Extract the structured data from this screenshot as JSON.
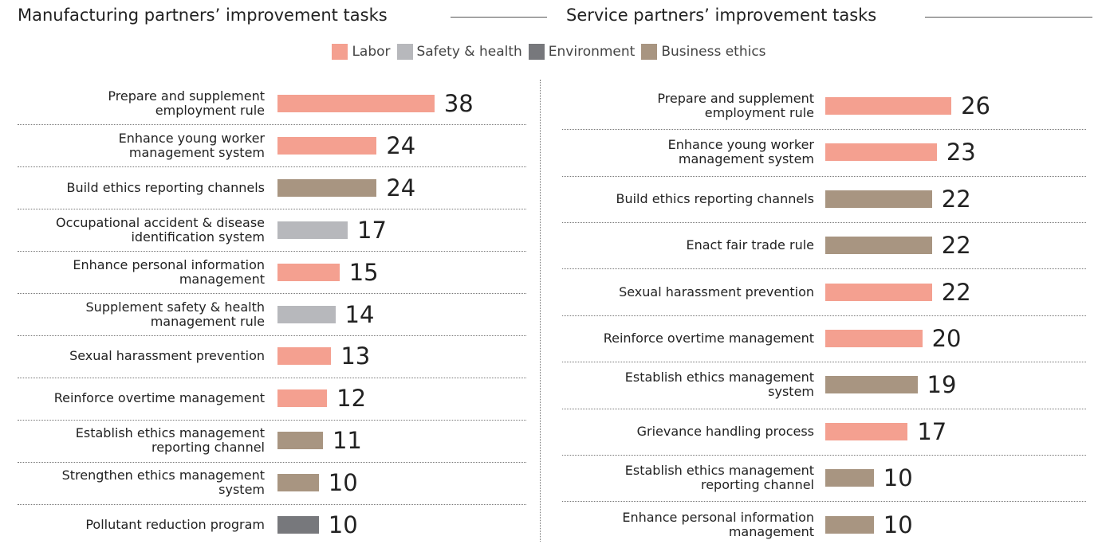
{
  "legend": [
    {
      "name": "Labor",
      "color": "#f4a090"
    },
    {
      "name": "Safety & health",
      "color": "#b7b8bc"
    },
    {
      "name": "Environment",
      "color": "#77787c"
    },
    {
      "name": "Business ethics",
      "color": "#a89581"
    }
  ],
  "chart_data": [
    {
      "type": "bar",
      "title": "Manufacturing partners’ improvement tasks",
      "categories": [
        "Prepare and supplement\nemployment rule",
        "Enhance young worker\nmanagement system",
        "Build ethics reporting channels",
        "Occupational accident & disease\nidentification system",
        "Enhance personal information\nmanagement",
        "Supplement safety & health\nmanagement rule",
        "Sexual harassment prevention",
        "Reinforce overtime management",
        "Establish ethics management\nreporting channel",
        "Strengthen ethics management\nsystem",
        "Pollutant reduction program"
      ],
      "values": [
        38,
        24,
        24,
        17,
        15,
        14,
        13,
        12,
        11,
        10,
        10
      ],
      "groups": [
        "Labor",
        "Labor",
        "Business ethics",
        "Safety & health",
        "Labor",
        "Safety & health",
        "Labor",
        "Labor",
        "Business ethics",
        "Business ethics",
        "Environment"
      ]
    },
    {
      "type": "bar",
      "title": "Service partners’ improvement tasks",
      "categories": [
        "Prepare and supplement\nemployment rule",
        "Enhance young worker\nmanagement system",
        "Build ethics reporting channels",
        "Enact fair trade rule",
        "Sexual harassment prevention",
        "Reinforce overtime management",
        "Establish ethics management\nsystem",
        "Grievance handling process",
        "Establish ethics management\nreporting channel",
        "Enhance personal information\nmanagement"
      ],
      "values": [
        26,
        23,
        22,
        22,
        22,
        20,
        19,
        17,
        10,
        10
      ],
      "groups": [
        "Labor",
        "Labor",
        "Business ethics",
        "Business ethics",
        "Labor",
        "Labor",
        "Business ethics",
        "Labor",
        "Business ethics",
        "Business ethics"
      ]
    }
  ]
}
